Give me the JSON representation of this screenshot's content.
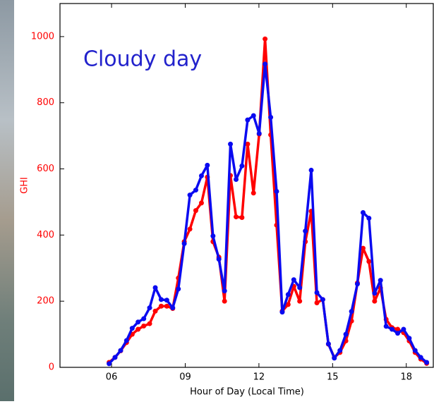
{
  "chart_data": {
    "type": "line",
    "annotation": "Cloudy day",
    "xlabel": "Hour of Day (Local Time)",
    "ylabel": "GHI",
    "x": [
      5.9,
      6.14,
      6.37,
      6.61,
      6.84,
      7.08,
      7.31,
      7.55,
      7.78,
      8.02,
      8.25,
      8.49,
      8.72,
      8.96,
      9.19,
      9.43,
      9.66,
      9.9,
      10.13,
      10.37,
      10.6,
      10.84,
      11.07,
      11.31,
      11.54,
      11.78,
      12.01,
      12.25,
      12.48,
      12.72,
      12.95,
      13.19,
      13.42,
      13.66,
      13.89,
      14.13,
      14.36,
      14.6,
      14.83,
      15.07,
      15.3,
      15.54,
      15.77,
      16.01,
      16.24,
      16.48,
      16.71,
      16.95,
      17.18,
      17.42,
      17.65,
      17.89,
      18.12,
      18.36,
      18.59,
      18.83
    ],
    "series": [
      {
        "color": "#ff0000",
        "values": [
          15,
          30,
          50,
          75,
          100,
          115,
          125,
          132,
          170,
          185,
          185,
          178,
          270,
          380,
          418,
          474,
          497,
          575,
          380,
          333,
          200,
          580,
          455,
          453,
          675,
          527,
          705,
          993,
          703,
          430,
          170,
          190,
          245,
          200,
          380,
          472,
          195,
          205,
          70,
          30,
          45,
          80,
          140,
          255,
          360,
          320,
          200,
          240,
          145,
          120,
          115,
          105,
          80,
          45,
          25,
          12
        ]
      },
      {
        "color": "#0a0af0",
        "values": [
          11,
          30,
          51,
          81,
          118,
          137,
          147,
          180,
          241,
          205,
          203,
          180,
          237,
          374,
          521,
          536,
          579,
          611,
          397,
          327,
          231,
          675,
          568,
          609,
          748,
          761,
          707,
          917,
          756,
          532,
          167,
          220,
          265,
          241,
          412,
          596,
          226,
          205,
          71,
          28,
          51,
          100,
          169,
          252,
          468,
          451,
          224,
          263,
          124,
          115,
          103,
          115,
          88,
          51,
          30,
          15
        ]
      }
    ],
    "xlim": [
      3.9,
      19.1
    ],
    "xticks": [
      {
        "value": 6,
        "label": "06"
      },
      {
        "value": 9,
        "label": "09"
      },
      12,
      15,
      18
    ],
    "ylim": [
      0,
      1100
    ],
    "yticks": [
      0,
      200,
      400,
      600,
      800,
      1000
    ],
    "ytick_color": "#ff0000"
  }
}
